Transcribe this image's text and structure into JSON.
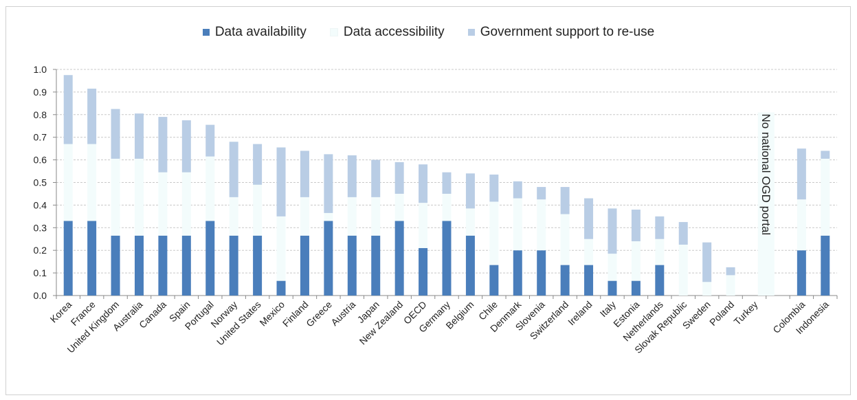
{
  "chart_data": {
    "type": "bar",
    "stacked": true,
    "categories": [
      "Korea",
      "France",
      "United Kingdom",
      "Australia",
      "Canada",
      "Spain",
      "Portugal",
      "Norway",
      "United States",
      "Mexico",
      "Finland",
      "Greece",
      "Austria",
      "Japan",
      "New Zealand",
      "OECD",
      "Germany",
      "Belgium",
      "Chile",
      "Denmark",
      "Slovenia",
      "Switzerland",
      "Ireland",
      "Italy",
      "Estonia",
      "Netherlands",
      "Slovak Republic",
      "Sweden",
      "Poland",
      "Turkey",
      "",
      "Colombia",
      "Indonesia"
    ],
    "series": [
      {
        "name": "Data availability",
        "color": "#4a7ebb",
        "values": [
          0.33,
          0.33,
          0.265,
          0.265,
          0.265,
          0.265,
          0.33,
          0.265,
          0.265,
          0.065,
          0.265,
          0.33,
          0.265,
          0.265,
          0.33,
          0.21,
          0.33,
          0.265,
          0.135,
          0.2,
          0.2,
          0.135,
          0.135,
          0.065,
          0.065,
          0.135,
          0,
          0,
          0,
          0,
          null,
          0.2,
          0.265
        ]
      },
      {
        "name": "Data accessibility",
        "color": "#f3fcfc",
        "values": [
          0.34,
          0.34,
          0.34,
          0.34,
          0.28,
          0.28,
          0.285,
          0.17,
          0.225,
          0.285,
          0.17,
          0.035,
          0.17,
          0.17,
          0.12,
          0.2,
          0.12,
          0.12,
          0.28,
          0.23,
          0.225,
          0.225,
          0.115,
          0.12,
          0.175,
          0.115,
          0.225,
          0.06,
          0.09,
          0,
          null,
          0.225,
          0.34
        ]
      },
      {
        "name": "Government support to re-use",
        "color": "#b9cde5",
        "values": [
          0.305,
          0.245,
          0.22,
          0.2,
          0.245,
          0.23,
          0.14,
          0.245,
          0.18,
          0.305,
          0.205,
          0.26,
          0.185,
          0.165,
          0.14,
          0.17,
          0.095,
          0.155,
          0.12,
          0.075,
          0.055,
          0.12,
          0.18,
          0.2,
          0.14,
          0.1,
          0.1,
          0.175,
          0.035,
          0,
          null,
          0.225,
          0.035
        ]
      }
    ],
    "ylim": [
      0,
      1.0
    ],
    "yticks": [
      "0.0",
      "0.1",
      "0.2",
      "0.3",
      "0.4",
      "0.5",
      "0.6",
      "0.7",
      "0.8",
      "0.9",
      "1.0"
    ],
    "grid": true,
    "legend_position": "top",
    "annotations": [
      {
        "text": "No national OGD portal",
        "category": "Turkey",
        "height": 0.81
      }
    ]
  }
}
